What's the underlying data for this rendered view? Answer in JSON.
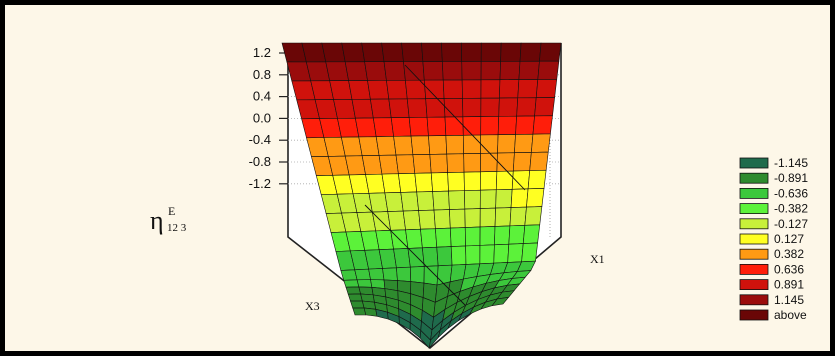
{
  "chart_data": {
    "type": "surface3d",
    "title": "",
    "zlabel_main": "η",
    "zlabel_superscript": "E",
    "zlabel_subscript": "12 3",
    "x_axis_label": "X1",
    "y_axis_label": "X3",
    "z_ticks": [
      "1.2",
      "0.8",
      "0.4",
      "0.0",
      "-0.4",
      "-0.8",
      "-1.2"
    ],
    "z_tick_values": [
      1.2,
      0.8,
      0.4,
      0.0,
      -0.4,
      -0.8,
      -1.2
    ],
    "zlim": [
      -1.6,
      1.4
    ],
    "grid": true,
    "legend_position": "right",
    "legend": [
      {
        "label": "-1.145",
        "color": "#1f6b4c"
      },
      {
        "label": "-0.891",
        "color": "#2e8b2e"
      },
      {
        "label": "-0.636",
        "color": "#3cc83c"
      },
      {
        "label": "-0.382",
        "color": "#5cf23a"
      },
      {
        "label": "-0.127",
        "color": "#c8f03a"
      },
      {
        "label": "0.127",
        "color": "#ffff22"
      },
      {
        "label": "0.382",
        "color": "#ff9a14"
      },
      {
        "label": "0.636",
        "color": "#ff1e0a"
      },
      {
        "label": "0.891",
        "color": "#d0120c"
      },
      {
        "label": "1.145",
        "color": "#9a0c0c"
      },
      {
        "label": "above",
        "color": "#6a0606"
      }
    ]
  }
}
